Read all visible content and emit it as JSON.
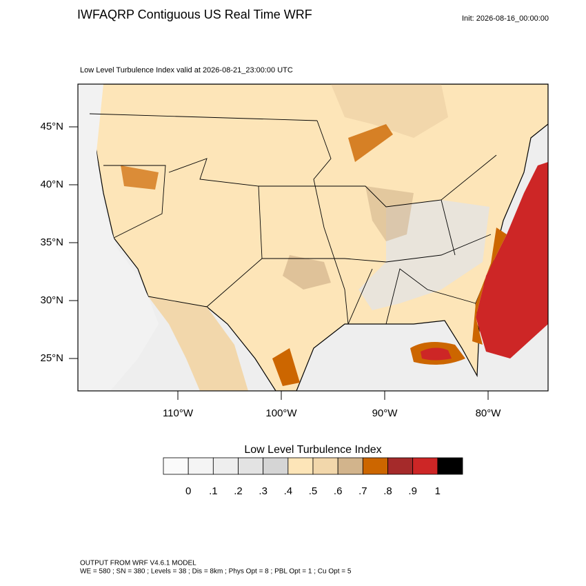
{
  "header": {
    "title": "IWFAQRP Contiguous US Real Time WRF",
    "init": "Init: 2026-08-16_00:00:00"
  },
  "map": {
    "subtitle": "Low Level Turbulence Index valid at 2026-08-21_23:00:00 UTC",
    "lat_labels": [
      "45°N",
      "40°N",
      "35°N",
      "30°N",
      "25°N"
    ],
    "lon_labels": [
      "110°W",
      "100°W",
      "90°W",
      "80°W"
    ]
  },
  "colorbar": {
    "title": "Low Level Turbulence Index",
    "colors": [
      "#fafafa",
      "#f4f4f4",
      "#eeeeee",
      "#e3e3e3",
      "#d5d5d5",
      "#fde5b8",
      "#f2d7ab",
      "#d2b48c",
      "#cc6600",
      "#a52a2a",
      "#cd2626",
      "#000000"
    ],
    "labels": [
      "0",
      ".1",
      ".2",
      ".3",
      ".4",
      ".5",
      ".6",
      ".7",
      ".8",
      ".9",
      "1"
    ]
  },
  "footer": {
    "line1": "OUTPUT FROM WRF V4.6.1 MODEL",
    "line2": "WE = 580 ; SN = 380 ; Levels = 38 ; Dis = 8km ; Phys Opt = 8 ; PBL Opt = 1 ; Cu Opt = 5"
  }
}
